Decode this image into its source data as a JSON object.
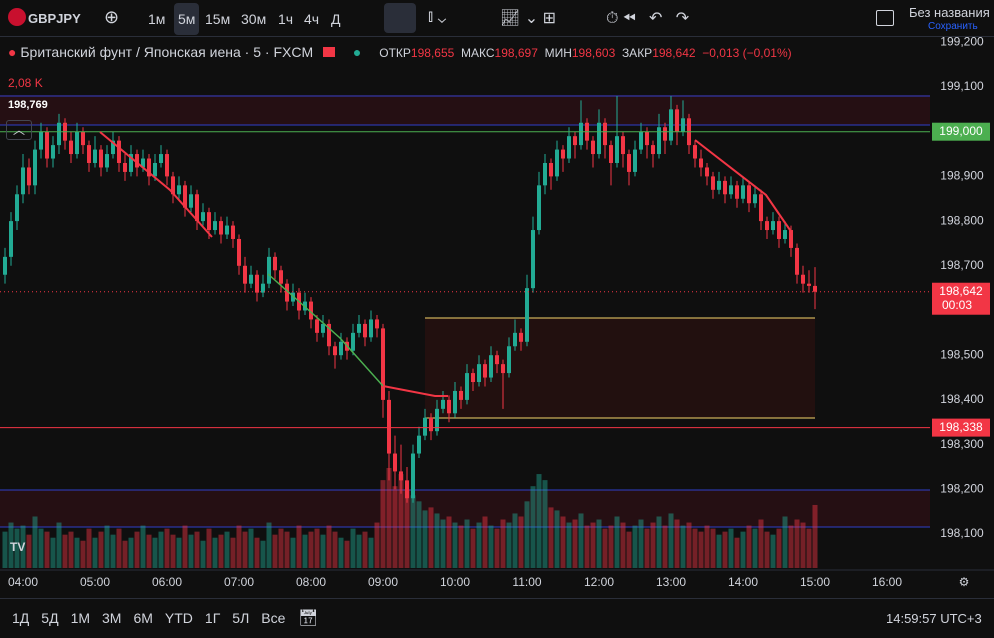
{
  "toolbar": {
    "symbol": "GBPJPY",
    "intervals": [
      "1м",
      "5м",
      "15м",
      "30м",
      "1ч",
      "4ч",
      "Д"
    ],
    "active_interval": 1,
    "layout_name": "Без названия",
    "save": "Сохранить"
  },
  "legend": {
    "title": "Британский фунт / Японская иена · 5 · FXCM",
    "open_label": "ОТКР",
    "open": "198,655",
    "high_label": "МАКС",
    "high": "198,697",
    "low_label": "МИН",
    "low": "198,603",
    "close_label": "ЗАКР",
    "close": "198,642",
    "change": "−0,013 (−0,01%)",
    "volume": "2,08 K",
    "crosshair_price": "198,769"
  },
  "chart": {
    "type": "candlestick",
    "up_color": "#22ab94",
    "down_color": "#f23645",
    "ylim": [
      198.025,
      199.215
    ],
    "yticks": [
      {
        "value": 199.2,
        "label": "199,200"
      },
      {
        "value": 199.1,
        "label": "199,100"
      },
      {
        "value": 198.9,
        "label": "198,900"
      },
      {
        "value": 198.8,
        "label": "198,800"
      },
      {
        "value": 198.7,
        "label": "198,700"
      },
      {
        "value": 198.5,
        "label": "198,500"
      },
      {
        "value": 198.4,
        "label": "198,400"
      },
      {
        "value": 198.3,
        "label": "198,300"
      },
      {
        "value": 198.2,
        "label": "198,200"
      },
      {
        "value": 198.1,
        "label": "198,100"
      }
    ],
    "xticks": [
      "04:00",
      "05:00",
      "06:00",
      "07:00",
      "08:00",
      "09:00",
      "10:00",
      "11:00",
      "12:00",
      "13:00",
      "14:00",
      "15:00",
      "16:00"
    ],
    "levels": [
      {
        "value": 199.0,
        "label": "199,000",
        "color": "#4caf50"
      },
      {
        "value": 198.338,
        "label": "198,338",
        "color": "#f23645"
      }
    ],
    "price_line": {
      "label": "198,642",
      "countdown": "00:03"
    },
    "ohlc": [
      [
        198.68,
        198.74,
        198.66,
        198.72
      ],
      [
        198.72,
        198.82,
        198.7,
        198.8
      ],
      [
        198.8,
        198.88,
        198.78,
        198.86
      ],
      [
        198.86,
        198.95,
        198.84,
        198.92
      ],
      [
        198.92,
        198.94,
        198.86,
        198.88
      ],
      [
        198.88,
        198.98,
        198.86,
        198.96
      ],
      [
        198.96,
        199.02,
        198.94,
        199.0
      ],
      [
        199.0,
        199.01,
        198.92,
        198.94
      ],
      [
        198.94,
        198.99,
        198.92,
        198.97
      ],
      [
        198.97,
        199.04,
        198.95,
        199.02
      ],
      [
        199.02,
        199.03,
        198.96,
        198.98
      ],
      [
        198.98,
        199.0,
        198.93,
        198.95
      ],
      [
        198.95,
        199.02,
        198.94,
        199.0
      ],
      [
        199.0,
        199.01,
        198.95,
        198.97
      ],
      [
        198.97,
        198.98,
        198.91,
        198.93
      ],
      [
        198.93,
        198.99,
        198.92,
        198.96
      ],
      [
        198.96,
        198.97,
        198.9,
        198.92
      ],
      [
        198.92,
        198.97,
        198.91,
        198.95
      ],
      [
        198.95,
        199.0,
        198.94,
        198.98
      ],
      [
        198.98,
        198.99,
        198.91,
        198.93
      ],
      [
        198.93,
        198.95,
        198.89,
        198.91
      ],
      [
        198.91,
        198.97,
        198.9,
        198.95
      ],
      [
        198.95,
        198.96,
        198.9,
        198.92
      ],
      [
        198.92,
        198.96,
        198.91,
        198.94
      ],
      [
        198.94,
        198.95,
        198.88,
        198.9
      ],
      [
        198.9,
        198.95,
        198.89,
        198.93
      ],
      [
        198.93,
        198.97,
        198.92,
        198.95
      ],
      [
        198.95,
        198.96,
        198.88,
        198.9
      ],
      [
        198.9,
        198.91,
        198.84,
        198.86
      ],
      [
        198.86,
        198.9,
        198.85,
        198.88
      ],
      [
        198.88,
        198.89,
        198.81,
        198.83
      ],
      [
        198.83,
        198.88,
        198.82,
        198.86
      ],
      [
        198.86,
        198.87,
        198.78,
        198.8
      ],
      [
        198.8,
        198.84,
        198.79,
        198.82
      ],
      [
        198.82,
        198.83,
        198.76,
        198.78
      ],
      [
        198.78,
        198.82,
        198.77,
        198.8
      ],
      [
        198.8,
        198.81,
        198.75,
        198.77
      ],
      [
        198.77,
        198.81,
        198.76,
        198.79
      ],
      [
        198.79,
        198.8,
        198.74,
        198.76
      ],
      [
        198.76,
        198.77,
        198.68,
        198.7
      ],
      [
        198.7,
        198.72,
        198.64,
        198.66
      ],
      [
        198.66,
        198.7,
        198.65,
        198.68
      ],
      [
        198.68,
        198.69,
        198.62,
        198.64
      ],
      [
        198.64,
        198.68,
        198.63,
        198.66
      ],
      [
        198.66,
        198.74,
        198.65,
        198.72
      ],
      [
        198.72,
        198.73,
        198.67,
        198.69
      ],
      [
        198.69,
        198.7,
        198.64,
        198.66
      ],
      [
        198.66,
        198.67,
        198.6,
        198.62
      ],
      [
        198.62,
        198.66,
        198.61,
        198.64
      ],
      [
        198.64,
        198.65,
        198.58,
        198.6
      ],
      [
        198.6,
        198.64,
        198.59,
        198.62
      ],
      [
        198.62,
        198.63,
        198.56,
        198.58
      ],
      [
        198.58,
        198.59,
        198.53,
        198.55
      ],
      [
        198.55,
        198.59,
        198.54,
        198.57
      ],
      [
        198.57,
        198.58,
        198.5,
        198.52
      ],
      [
        198.52,
        198.53,
        198.47,
        198.5
      ],
      [
        198.5,
        198.55,
        198.49,
        198.53
      ],
      [
        198.53,
        198.54,
        198.49,
        198.51
      ],
      [
        198.51,
        198.57,
        198.5,
        198.55
      ],
      [
        198.55,
        198.59,
        198.54,
        198.57
      ],
      [
        198.57,
        198.58,
        198.52,
        198.54
      ],
      [
        198.54,
        198.6,
        198.53,
        198.58
      ],
      [
        198.58,
        198.59,
        198.54,
        198.56
      ],
      [
        198.56,
        198.57,
        198.36,
        198.4
      ],
      [
        198.4,
        198.42,
        198.22,
        198.28
      ],
      [
        198.28,
        198.32,
        198.2,
        198.24
      ],
      [
        198.24,
        198.3,
        198.19,
        198.22
      ],
      [
        198.22,
        198.25,
        198.17,
        198.18
      ],
      [
        198.18,
        198.3,
        198.17,
        198.28
      ],
      [
        198.28,
        198.34,
        198.27,
        198.32
      ],
      [
        198.32,
        198.38,
        198.31,
        198.36
      ],
      [
        198.36,
        198.37,
        198.31,
        198.33
      ],
      [
        198.33,
        198.4,
        198.32,
        198.38
      ],
      [
        198.38,
        198.42,
        198.37,
        198.4
      ],
      [
        198.4,
        198.41,
        198.35,
        198.37
      ],
      [
        198.37,
        198.44,
        198.36,
        198.42
      ],
      [
        198.42,
        198.43,
        198.38,
        198.4
      ],
      [
        198.4,
        198.48,
        198.39,
        198.46
      ],
      [
        198.46,
        198.47,
        198.42,
        198.44
      ],
      [
        198.44,
        198.5,
        198.43,
        198.48
      ],
      [
        198.48,
        198.49,
        198.43,
        198.45
      ],
      [
        198.45,
        198.52,
        198.44,
        198.5
      ],
      [
        198.5,
        198.51,
        198.46,
        198.48
      ],
      [
        198.48,
        198.49,
        198.38,
        198.46
      ],
      [
        198.46,
        198.54,
        198.45,
        198.52
      ],
      [
        198.52,
        198.58,
        198.51,
        198.55
      ],
      [
        198.55,
        198.56,
        198.51,
        198.53
      ],
      [
        198.53,
        198.68,
        198.52,
        198.65
      ],
      [
        198.65,
        198.81,
        198.64,
        198.78
      ],
      [
        198.78,
        198.91,
        198.77,
        198.88
      ],
      [
        198.88,
        198.95,
        198.86,
        198.93
      ],
      [
        198.93,
        198.94,
        198.87,
        198.9
      ],
      [
        198.9,
        198.98,
        198.89,
        198.96
      ],
      [
        198.96,
        198.97,
        198.91,
        198.94
      ],
      [
        198.94,
        199.01,
        198.93,
        198.99
      ],
      [
        198.99,
        199.0,
        198.94,
        198.97
      ],
      [
        198.97,
        199.07,
        198.96,
        199.02
      ],
      [
        199.02,
        199.03,
        198.96,
        198.98
      ],
      [
        198.98,
        198.99,
        198.92,
        198.95
      ],
      [
        198.95,
        199.05,
        198.94,
        199.02
      ],
      [
        199.02,
        199.03,
        198.94,
        198.97
      ],
      [
        198.97,
        198.98,
        198.88,
        198.93
      ],
      [
        198.93,
        199.08,
        198.92,
        198.99
      ],
      [
        198.99,
        199.0,
        198.92,
        198.95
      ],
      [
        198.95,
        198.96,
        198.88,
        198.91
      ],
      [
        198.91,
        198.98,
        198.9,
        198.96
      ],
      [
        198.96,
        199.02,
        198.95,
        199.0
      ],
      [
        199.0,
        199.01,
        198.94,
        198.97
      ],
      [
        198.97,
        198.98,
        198.92,
        198.95
      ],
      [
        198.95,
        199.04,
        198.94,
        199.01
      ],
      [
        199.01,
        199.02,
        198.95,
        198.98
      ],
      [
        198.98,
        199.08,
        198.97,
        199.05
      ],
      [
        199.05,
        199.06,
        198.97,
        199.0
      ],
      [
        199.0,
        199.07,
        198.99,
        199.03
      ],
      [
        199.03,
        199.04,
        198.95,
        198.97
      ],
      [
        198.97,
        198.98,
        198.92,
        198.94
      ],
      [
        198.94,
        198.96,
        198.9,
        198.92
      ],
      [
        198.92,
        198.93,
        198.88,
        198.9
      ],
      [
        198.9,
        198.91,
        198.85,
        198.87
      ],
      [
        198.87,
        198.91,
        198.86,
        198.89
      ],
      [
        198.89,
        198.9,
        198.84,
        198.86
      ],
      [
        198.86,
        198.9,
        198.85,
        198.88
      ],
      [
        198.88,
        198.89,
        198.83,
        198.85
      ],
      [
        198.85,
        198.9,
        198.84,
        198.88
      ],
      [
        198.88,
        198.89,
        198.82,
        198.84
      ],
      [
        198.84,
        198.88,
        198.83,
        198.86
      ],
      [
        198.86,
        198.87,
        198.78,
        198.8
      ],
      [
        198.8,
        198.81,
        198.76,
        198.78
      ],
      [
        198.78,
        198.82,
        198.77,
        198.8
      ],
      [
        198.8,
        198.81,
        198.74,
        198.76
      ],
      [
        198.76,
        198.8,
        198.75,
        198.78
      ],
      [
        198.78,
        198.79,
        198.72,
        198.74
      ],
      [
        198.74,
        198.75,
        198.66,
        198.68
      ],
      [
        198.68,
        198.7,
        198.64,
        198.66
      ],
      [
        198.66,
        198.69,
        198.64,
        198.655
      ],
      [
        198.655,
        198.697,
        198.603,
        198.642
      ]
    ],
    "volume": [
      1200,
      1500,
      1300,
      1400,
      1100,
      1700,
      1300,
      1200,
      1000,
      1500,
      1100,
      1200,
      1000,
      900,
      1300,
      1000,
      1200,
      1400,
      1100,
      1300,
      900,
      1000,
      1200,
      1400,
      1100,
      1000,
      1200,
      1300,
      1100,
      1000,
      1400,
      1100,
      1200,
      900,
      1300,
      1000,
      1100,
      1200,
      1000,
      1400,
      1200,
      1300,
      1000,
      900,
      1500,
      1100,
      1300,
      1200,
      1000,
      1400,
      1100,
      1200,
      1300,
      1100,
      1400,
      1200,
      1000,
      900,
      1300,
      1100,
      1200,
      1000,
      1500,
      2900,
      3300,
      2700,
      3100,
      2600,
      2400,
      2200,
      1900,
      2000,
      1800,
      1600,
      1700,
      1500,
      1400,
      1600,
      1300,
      1500,
      1700,
      1400,
      1300,
      1600,
      1500,
      1800,
      1700,
      2200,
      2700,
      3100,
      2900,
      2000,
      1900,
      1700,
      1500,
      1600,
      1800,
      1400,
      1500,
      1600,
      1300,
      1400,
      1700,
      1500,
      1200,
      1400,
      1600,
      1300,
      1500,
      1700,
      1400,
      1800,
      1600,
      1400,
      1500,
      1300,
      1200,
      1400,
      1300,
      1100,
      1200,
      1300,
      1000,
      1200,
      1400,
      1300,
      1600,
      1200,
      1100,
      1300,
      1700,
      1400,
      1600,
      1500,
      1300,
      2080
    ]
  },
  "bottom": {
    "ranges": [
      "1Д",
      "5Д",
      "1М",
      "3М",
      "6М",
      "YTD",
      "1Г",
      "5Л",
      "Все"
    ],
    "clock": "14:59:57 UTC+3"
  }
}
